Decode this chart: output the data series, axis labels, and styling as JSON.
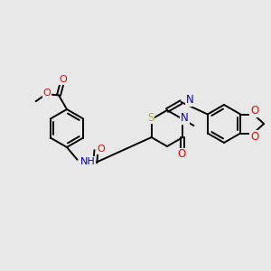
{
  "bg_color": "#e8e8e8",
  "line_color": "#000000",
  "bond_width": 1.4,
  "atom_colors": {
    "O": "#ff0000",
    "N": "#0000cc",
    "S": "#ccaa00",
    "C": "#000000",
    "H": "#000000"
  },
  "font_size": 7.5,
  "fig_width": 3.0,
  "fig_height": 3.0,
  "dpi": 100
}
